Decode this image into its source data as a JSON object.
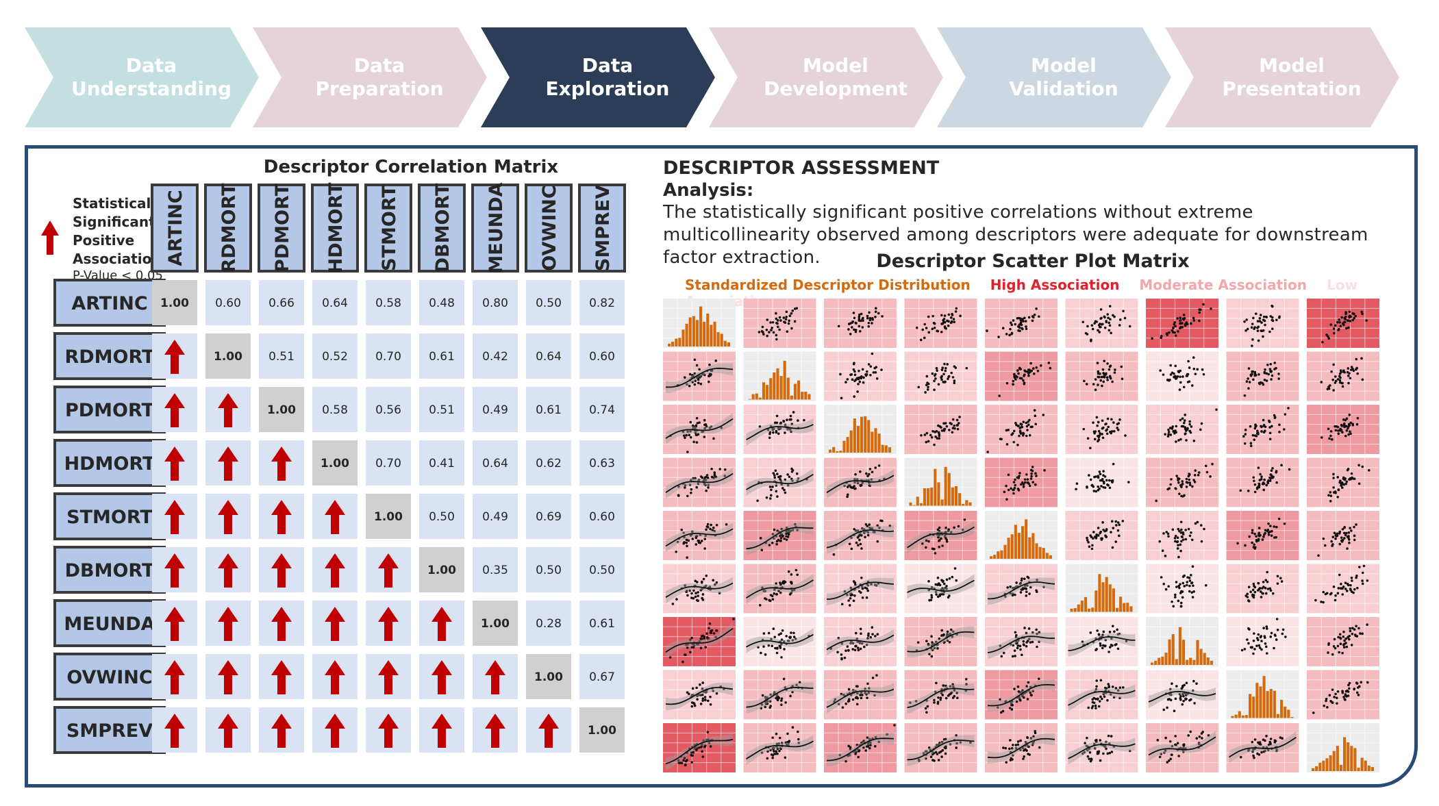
{
  "pipeline": {
    "steps": [
      {
        "line1": "Data",
        "line2": "Understanding",
        "fill": "#c3dfe1",
        "text": "#ffffff"
      },
      {
        "line1": "Data",
        "line2": "Preparation",
        "fill": "#e5d3d9",
        "text": "#ffffff"
      },
      {
        "line1": "Data",
        "line2": "Exploration",
        "fill": "#2b3d57",
        "text": "#ffffff"
      },
      {
        "line1": "Model",
        "line2": "Development",
        "fill": "#e5d3d9",
        "text": "#ffffff"
      },
      {
        "line1": "Model",
        "line2": "Validation",
        "fill": "#ccd8e1",
        "text": "#ffffff"
      },
      {
        "line1": "Model",
        "line2": "Presentation",
        "fill": "#e5d3d9",
        "text": "#ffffff"
      }
    ],
    "active_index": 2
  },
  "correlation": {
    "title": "Descriptor Correlation Matrix",
    "legend": {
      "lines": [
        "Statistically",
        "Significant",
        "Positive",
        "Association"
      ],
      "pvalue": "P-Value < 0.05",
      "arrow_color": "#c00000"
    },
    "colors": {
      "header_fill": "#b4c7e7",
      "cell_fill": "#dae3f3",
      "diag_fill": "#d0d0d0",
      "border": "#3a3a3a"
    }
  },
  "chart_data": {
    "type": "heatmap",
    "title": "Descriptor Correlation Matrix",
    "variables": [
      "ARTINC",
      "RDMORT",
      "PDMORT",
      "HDMORT",
      "STMORT",
      "DBMORT",
      "MEUNDA",
      "OVWINC",
      "SMPREV"
    ],
    "upper_triangle_correlations": [
      [
        "1.00",
        "0.60",
        "0.66",
        "0.64",
        "0.58",
        "0.48",
        "0.80",
        "0.50",
        "0.82"
      ],
      [
        "",
        "1.00",
        "0.51",
        "0.52",
        "0.70",
        "0.61",
        "0.42",
        "0.64",
        "0.60"
      ],
      [
        "",
        "",
        "1.00",
        "0.58",
        "0.56",
        "0.51",
        "0.49",
        "0.61",
        "0.74"
      ],
      [
        "",
        "",
        "",
        "1.00",
        "0.70",
        "0.41",
        "0.64",
        "0.62",
        "0.63"
      ],
      [
        "",
        "",
        "",
        "",
        "1.00",
        "0.50",
        "0.49",
        "0.69",
        "0.60"
      ],
      [
        "",
        "",
        "",
        "",
        "",
        "1.00",
        "0.35",
        "0.50",
        "0.50"
      ],
      [
        "",
        "",
        "",
        "",
        "",
        "",
        "1.00",
        "0.28",
        "0.61"
      ],
      [
        "",
        "",
        "",
        "",
        "",
        "",
        "",
        "1.00",
        "0.67"
      ],
      [
        "",
        "",
        "",
        "",
        "",
        "",
        "",
        "",
        "1.00"
      ]
    ],
    "lower_triangle": "significant-positive-arrow"
  },
  "assessment": {
    "title": "DESCRIPTOR ASSESSMENT",
    "analysis_label": "Analysis:",
    "analysis_text": "The statistically significant positive correlations without extreme multicollinearity observed among descriptors were adequate for downstream factor extraction."
  },
  "scatter_matrix": {
    "title": "Descriptor Scatter Plot Matrix",
    "legend": [
      {
        "label": "Standardized Descriptor Distribution",
        "color": "#d46a0c"
      },
      {
        "label": "High Association",
        "color": "#e0202a"
      },
      {
        "label": "Moderate Association",
        "color": "#f2a7ad"
      },
      {
        "label": "Low Association",
        "color": "#fae0e2"
      }
    ],
    "hist_color": "#d46a0c"
  }
}
